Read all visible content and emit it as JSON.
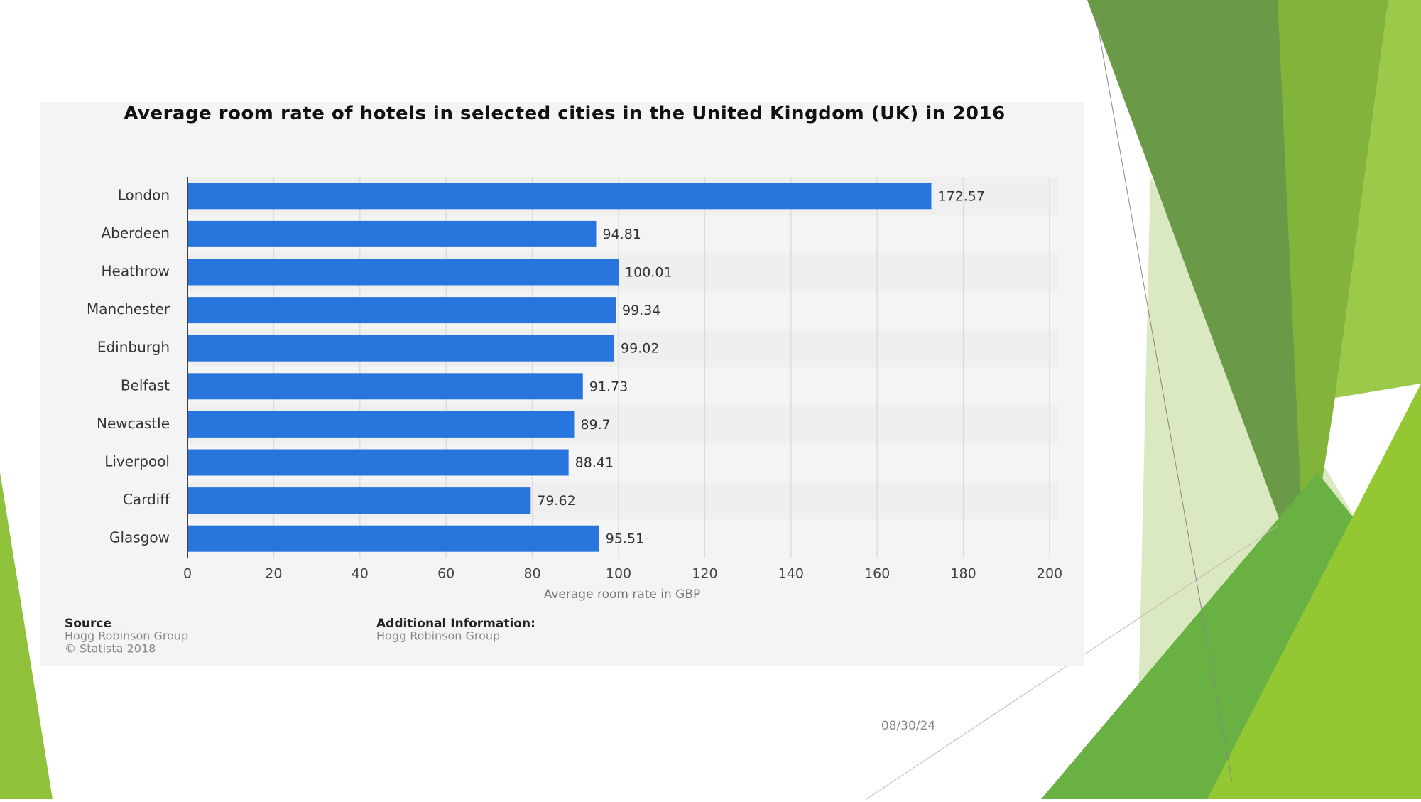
{
  "chart_data": {
    "type": "barh",
    "title": "Average room rate of hotels in selected cities in the United Kingdom (UK) in 2016",
    "categories": [
      "London",
      "Aberdeen",
      "Heathrow",
      "Manchester",
      "Edinburgh",
      "Belfast",
      "Newcastle",
      "Liverpool",
      "Cardiff",
      "Glasgow"
    ],
    "values": [
      172.57,
      94.81,
      100.01,
      99.34,
      99.02,
      91.73,
      89.7,
      88.41,
      79.62,
      95.51
    ],
    "color": "#2876dd",
    "xlim": [
      0,
      200
    ],
    "xticks": [
      0,
      20,
      40,
      60,
      80,
      100,
      120,
      140,
      160,
      180,
      200
    ],
    "grid": true,
    "x_label": "Average room rate in GBP",
    "source_label": "Source",
    "source": "Hogg Robinson Group",
    "copyright": "© Statista 2018",
    "additional_info_label": "Additional Information:",
    "additional_info": "Hogg Robinson Group"
  },
  "slide": {
    "date": "08/30/24"
  }
}
